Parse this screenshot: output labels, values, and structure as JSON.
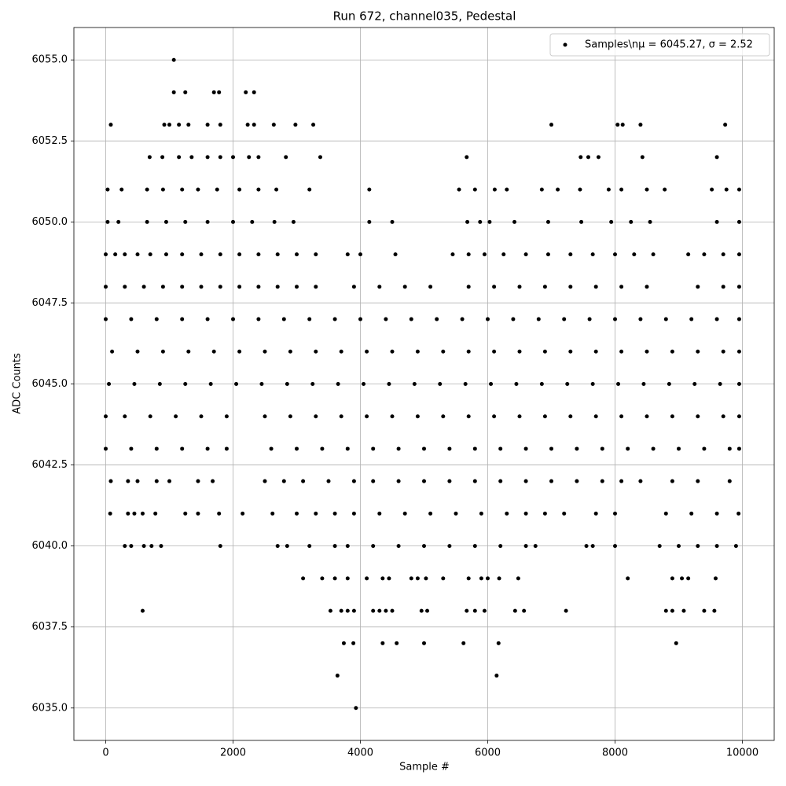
{
  "chart_data": {
    "type": "scatter",
    "title": "Run 672, channel035, Pedestal",
    "xlabel": "Sample #",
    "ylabel": "ADC Counts",
    "xlim": [
      -500,
      10500
    ],
    "ylim": [
      6034,
      6056
    ],
    "xticks": [
      0,
      2000,
      4000,
      6000,
      8000,
      10000
    ],
    "yticks": [
      {
        "value": 6035,
        "label": "6035.0"
      },
      {
        "value": 6037.5,
        "label": "6037.5"
      },
      {
        "value": 6040,
        "label": "6040.0"
      },
      {
        "value": 6042.5,
        "label": "6042.5"
      },
      {
        "value": 6045,
        "label": "6045.0"
      },
      {
        "value": 6047.5,
        "label": "6047.5"
      },
      {
        "value": 6050,
        "label": "6050.0"
      },
      {
        "value": 6052.5,
        "label": "6052.5"
      },
      {
        "value": 6055,
        "label": "6055.0"
      }
    ],
    "grid": true,
    "legend": "upper right",
    "series": [
      {
        "name": "Samples\\nμ = 6045.27, σ = 2.52",
        "color": "#000000",
        "x": [
          1070,
          1070,
          1250,
          1700,
          1780,
          2200,
          2330,
          80,
          920,
          1000,
          1150,
          1300,
          1600,
          1800,
          2230,
          2330,
          2640,
          2980,
          3260,
          7000,
          8040,
          8120,
          8400,
          9730,
          690,
          890,
          1150,
          1350,
          1600,
          1800,
          2000,
          2250,
          2400,
          2830,
          3370,
          5670,
          7460,
          7580,
          7740,
          8430,
          9600,
          30,
          250,
          650,
          900,
          1200,
          1450,
          1750,
          2100,
          2400,
          2680,
          3200,
          4140,
          5550,
          5800,
          6110,
          6300,
          6850,
          7100,
          7450,
          7900,
          8100,
          8500,
          8780,
          9520,
          9750,
          9950,
          30,
          200,
          650,
          950,
          1250,
          1600,
          2000,
          2300,
          2650,
          2950,
          4140,
          4500,
          5680,
          5880,
          6030,
          6420,
          6950,
          7470,
          7940,
          8250,
          8550,
          9600,
          9950,
          0,
          150,
          300,
          500,
          700,
          950,
          1200,
          1500,
          1800,
          2100,
          2400,
          2700,
          3000,
          3300,
          3800,
          4000,
          4550,
          5450,
          5700,
          5950,
          6250,
          6600,
          6950,
          7300,
          7650,
          8000,
          8300,
          8600,
          9150,
          9400,
          9700,
          9950,
          0,
          300,
          600,
          900,
          1200,
          1500,
          1800,
          2100,
          2400,
          2700,
          3000,
          3300,
          3900,
          4300,
          4700,
          5100,
          5700,
          6100,
          6500,
          6900,
          7300,
          7700,
          8100,
          8500,
          9300,
          9700,
          9950,
          0,
          400,
          800,
          1200,
          1600,
          2000,
          2400,
          2800,
          3200,
          3600,
          4000,
          4400,
          4800,
          5200,
          5600,
          6000,
          6400,
          6800,
          7200,
          7600,
          8000,
          8400,
          8800,
          9200,
          9600,
          9950,
          100,
          500,
          900,
          1300,
          1700,
          2100,
          2500,
          2900,
          3300,
          3700,
          4100,
          4500,
          4900,
          5300,
          5700,
          6100,
          6500,
          6900,
          7300,
          7700,
          8100,
          8500,
          8900,
          9300,
          9700,
          9950,
          50,
          450,
          850,
          1250,
          1650,
          2050,
          2450,
          2850,
          3250,
          3650,
          4050,
          4450,
          4850,
          5250,
          5650,
          6050,
          6450,
          6850,
          7250,
          7650,
          8050,
          8450,
          8850,
          9250,
          9650,
          9950,
          0,
          300,
          700,
          1100,
          1500,
          1900,
          2500,
          2900,
          3300,
          3700,
          4100,
          4500,
          4900,
          5300,
          5700,
          6100,
          6500,
          6900,
          7300,
          7700,
          8100,
          8500,
          8900,
          9300,
          9700,
          9950,
          0,
          400,
          800,
          1200,
          1600,
          1900,
          2600,
          3000,
          3400,
          3800,
          4200,
          4600,
          5000,
          5400,
          5800,
          6200,
          6600,
          7000,
          7400,
          7800,
          8200,
          8600,
          9000,
          9400,
          9800,
          9950,
          80,
          350,
          500,
          800,
          1000,
          1450,
          1680,
          2500,
          2800,
          3100,
          3500,
          3900,
          4200,
          4600,
          5000,
          5400,
          5800,
          6200,
          6600,
          7000,
          7400,
          7800,
          8100,
          8400,
          8900,
          9300,
          9800,
          70,
          350,
          450,
          580,
          780,
          1250,
          1450,
          1780,
          2150,
          2620,
          3000,
          3300,
          3600,
          3900,
          4300,
          4700,
          5100,
          5500,
          5900,
          6300,
          6600,
          6900,
          7200,
          7700,
          8000,
          8800,
          9200,
          9600,
          9940,
          300,
          400,
          600,
          720,
          870,
          1800,
          2700,
          2850,
          3200,
          3600,
          3800,
          4200,
          4600,
          5000,
          5400,
          5800,
          6200,
          6600,
          6750,
          7550,
          7650,
          8000,
          8700,
          9000,
          9300,
          9600,
          9900,
          3100,
          3400,
          3600,
          3800,
          4100,
          4350,
          4450,
          4800,
          4900,
          5030,
          5300,
          5700,
          5900,
          6000,
          6180,
          6480,
          8200,
          8900,
          9050,
          9150,
          9580,
          580,
          3530,
          3700,
          3800,
          3900,
          4200,
          4300,
          4400,
          4500,
          4960,
          5050,
          5670,
          5800,
          5950,
          6430,
          6570,
          7230,
          8800,
          8900,
          9080,
          9400,
          9560,
          3740,
          3890,
          4350,
          4570,
          5000,
          5620,
          6170,
          8960,
          3640,
          6140,
          3930
        ],
        "y": [
          6055,
          6054,
          6054,
          6054,
          6054,
          6054,
          6054,
          6053,
          6053,
          6053,
          6053,
          6053,
          6053,
          6053,
          6053,
          6053,
          6053,
          6053,
          6053,
          6053,
          6053,
          6053,
          6053,
          6053,
          6052,
          6052,
          6052,
          6052,
          6052,
          6052,
          6052,
          6052,
          6052,
          6052,
          6052,
          6052,
          6052,
          6052,
          6052,
          6052,
          6052,
          6051,
          6051,
          6051,
          6051,
          6051,
          6051,
          6051,
          6051,
          6051,
          6051,
          6051,
          6051,
          6051,
          6051,
          6051,
          6051,
          6051,
          6051,
          6051,
          6051,
          6051,
          6051,
          6051,
          6051,
          6051,
          6051,
          6050,
          6050,
          6050,
          6050,
          6050,
          6050,
          6050,
          6050,
          6050,
          6050,
          6050,
          6050,
          6050,
          6050,
          6050,
          6050,
          6050,
          6050,
          6050,
          6050,
          6050,
          6050,
          6050,
          6049,
          6049,
          6049,
          6049,
          6049,
          6049,
          6049,
          6049,
          6049,
          6049,
          6049,
          6049,
          6049,
          6049,
          6049,
          6049,
          6049,
          6049,
          6049,
          6049,
          6049,
          6049,
          6049,
          6049,
          6049,
          6049,
          6049,
          6049,
          6049,
          6049,
          6049,
          6049,
          6048,
          6048,
          6048,
          6048,
          6048,
          6048,
          6048,
          6048,
          6048,
          6048,
          6048,
          6048,
          6048,
          6048,
          6048,
          6048,
          6048,
          6048,
          6048,
          6048,
          6048,
          6048,
          6048,
          6048,
          6048,
          6048,
          6048,
          6047,
          6047,
          6047,
          6047,
          6047,
          6047,
          6047,
          6047,
          6047,
          6047,
          6047,
          6047,
          6047,
          6047,
          6047,
          6047,
          6047,
          6047,
          6047,
          6047,
          6047,
          6047,
          6047,
          6047,
          6047,
          6047,
          6046,
          6046,
          6046,
          6046,
          6046,
          6046,
          6046,
          6046,
          6046,
          6046,
          6046,
          6046,
          6046,
          6046,
          6046,
          6046,
          6046,
          6046,
          6046,
          6046,
          6046,
          6046,
          6046,
          6046,
          6046,
          6046,
          6045,
          6045,
          6045,
          6045,
          6045,
          6045,
          6045,
          6045,
          6045,
          6045,
          6045,
          6045,
          6045,
          6045,
          6045,
          6045,
          6045,
          6045,
          6045,
          6045,
          6045,
          6045,
          6045,
          6045,
          6045,
          6045,
          6044,
          6044,
          6044,
          6044,
          6044,
          6044,
          6044,
          6044,
          6044,
          6044,
          6044,
          6044,
          6044,
          6044,
          6044,
          6044,
          6044,
          6044,
          6044,
          6044,
          6044,
          6044,
          6044,
          6044,
          6044,
          6044,
          6043,
          6043,
          6043,
          6043,
          6043,
          6043,
          6043,
          6043,
          6043,
          6043,
          6043,
          6043,
          6043,
          6043,
          6043,
          6043,
          6043,
          6043,
          6043,
          6043,
          6043,
          6043,
          6043,
          6043,
          6043,
          6043,
          6042,
          6042,
          6042,
          6042,
          6042,
          6042,
          6042,
          6042,
          6042,
          6042,
          6042,
          6042,
          6042,
          6042,
          6042,
          6042,
          6042,
          6042,
          6042,
          6042,
          6042,
          6042,
          6042,
          6042,
          6042,
          6042,
          6042,
          6041,
          6041,
          6041,
          6041,
          6041,
          6041,
          6041,
          6041,
          6041,
          6041,
          6041,
          6041,
          6041,
          6041,
          6041,
          6041,
          6041,
          6041,
          6041,
          6041,
          6041,
          6041,
          6041,
          6041,
          6041,
          6041,
          6041,
          6041,
          6041,
          6040,
          6040,
          6040,
          6040,
          6040,
          6040,
          6040,
          6040,
          6040,
          6040,
          6040,
          6040,
          6040,
          6040,
          6040,
          6040,
          6040,
          6040,
          6040,
          6040,
          6040,
          6040,
          6040,
          6040,
          6040,
          6040,
          6040,
          6039,
          6039,
          6039,
          6039,
          6039,
          6039,
          6039,
          6039,
          6039,
          6039,
          6039,
          6039,
          6039,
          6039,
          6039,
          6039,
          6039,
          6039,
          6039,
          6039,
          6039,
          6038,
          6038,
          6038,
          6038,
          6038,
          6038,
          6038,
          6038,
          6038,
          6038,
          6038,
          6038,
          6038,
          6038,
          6038,
          6038,
          6038,
          6038,
          6038,
          6038,
          6038,
          6038,
          6037,
          6037,
          6037,
          6037,
          6037,
          6037,
          6037,
          6037,
          6036,
          6036,
          6035
        ]
      }
    ]
  }
}
